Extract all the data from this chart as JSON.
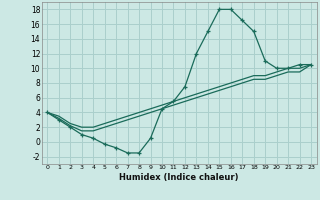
{
  "title": "",
  "xlabel": "Humidex (Indice chaleur)",
  "background_color": "#cce8e4",
  "grid_color": "#aacfcc",
  "line_color": "#1a6b5a",
  "xlim": [
    -0.5,
    23.5
  ],
  "ylim": [
    -3,
    19
  ],
  "xticks": [
    0,
    1,
    2,
    3,
    4,
    5,
    6,
    7,
    8,
    9,
    10,
    11,
    12,
    13,
    14,
    15,
    16,
    17,
    18,
    19,
    20,
    21,
    22,
    23
  ],
  "yticks": [
    -2,
    0,
    2,
    4,
    6,
    8,
    10,
    12,
    14,
    16,
    18
  ],
  "curve1_x": [
    0,
    1,
    2,
    3,
    4,
    5,
    6,
    7,
    8,
    9,
    10,
    11,
    12,
    13,
    14,
    15,
    16,
    17,
    18,
    19,
    20,
    21,
    22,
    23
  ],
  "curve1_y": [
    4,
    3,
    2,
    1,
    0.5,
    -0.3,
    -0.8,
    -1.5,
    -1.5,
    0.5,
    4.5,
    5.5,
    7.5,
    12,
    15,
    18,
    18,
    16.5,
    15,
    11,
    10,
    10,
    10.5,
    10.5
  ],
  "curve2_x": [
    0,
    1,
    2,
    3,
    4,
    5,
    6,
    7,
    8,
    9,
    10,
    11,
    12,
    13,
    14,
    15,
    16,
    17,
    18,
    19,
    20,
    21,
    22,
    23
  ],
  "curve2_y": [
    4,
    3.5,
    2.5,
    2,
    2,
    2.5,
    3,
    3.5,
    4,
    4.5,
    5,
    5.5,
    6,
    6.5,
    7,
    7.5,
    8,
    8.5,
    9,
    9,
    9.5,
    10,
    10,
    10.5
  ],
  "curve3_x": [
    0,
    1,
    2,
    3,
    4,
    5,
    6,
    7,
    8,
    9,
    10,
    11,
    12,
    13,
    14,
    15,
    16,
    17,
    18,
    19,
    20,
    21,
    22,
    23
  ],
  "curve3_y": [
    4,
    3.2,
    2.2,
    1.5,
    1.5,
    2,
    2.5,
    3,
    3.5,
    4,
    4.5,
    5,
    5.5,
    6,
    6.5,
    7,
    7.5,
    8,
    8.5,
    8.5,
    9,
    9.5,
    9.5,
    10.5
  ]
}
